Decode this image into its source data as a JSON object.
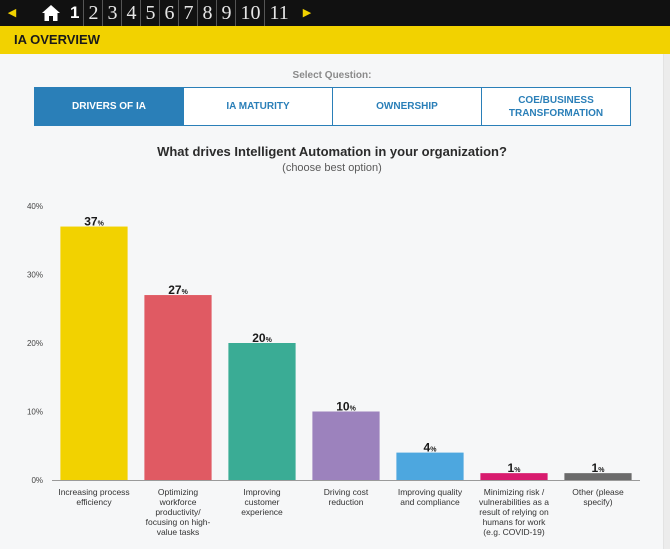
{
  "nav": {
    "prev_icon": "left-triangle",
    "next_icon": "right-triangle",
    "home_icon": "home-icon",
    "pages": [
      "1",
      "2",
      "3",
      "4",
      "5",
      "6",
      "7",
      "8",
      "9",
      "10",
      "11"
    ],
    "active_page": "1"
  },
  "header": {
    "title": "IA OVERVIEW"
  },
  "select_label": "Select Question:",
  "tabs": [
    {
      "label": "DRIVERS OF IA",
      "active": true
    },
    {
      "label": "IA MATURITY",
      "active": false
    },
    {
      "label": "OWNERSHIP",
      "active": false
    },
    {
      "label": "COE/BUSINESS TRANSFORMATION",
      "active": false
    }
  ],
  "colors": {
    "accent": "#f2d200",
    "tab_blue": "#2a7fb8",
    "topbar": "#111111"
  },
  "chart_data": {
    "type": "bar",
    "title": "What drives Intelligent Automation in your organization?",
    "subtitle": "(choose best option)",
    "ylim": [
      0,
      40
    ],
    "yticks": [
      "0%",
      "10%",
      "20%",
      "30%",
      "40%"
    ],
    "ytick_values": [
      0,
      10,
      20,
      30,
      40
    ],
    "unit_suffix": "%",
    "grid": false,
    "categories": [
      [
        "Increasing process",
        "efficiency"
      ],
      [
        "Optimizing",
        "workforce",
        "productivity/",
        "focusing on high-",
        "value tasks"
      ],
      [
        "Improving",
        "customer",
        "experience"
      ],
      [
        "Driving cost",
        "reduction"
      ],
      [
        "Improving quality",
        "and compliance"
      ],
      [
        "Minimizing risk /",
        "vulnerabilities as a",
        "result of relying on",
        "humans for work",
        "(e.g. COVID-19)"
      ],
      [
        "Other (please",
        "specify)"
      ]
    ],
    "values": [
      37,
      27,
      20,
      10,
      4,
      1,
      1
    ],
    "value_labels": [
      "37",
      "27",
      "20",
      "10",
      "4",
      "1",
      "1"
    ],
    "bar_colors": [
      "#f2d200",
      "#e05a63",
      "#3aac95",
      "#9c82bd",
      "#4da7df",
      "#d81b6e",
      "#6b6b6b"
    ]
  }
}
